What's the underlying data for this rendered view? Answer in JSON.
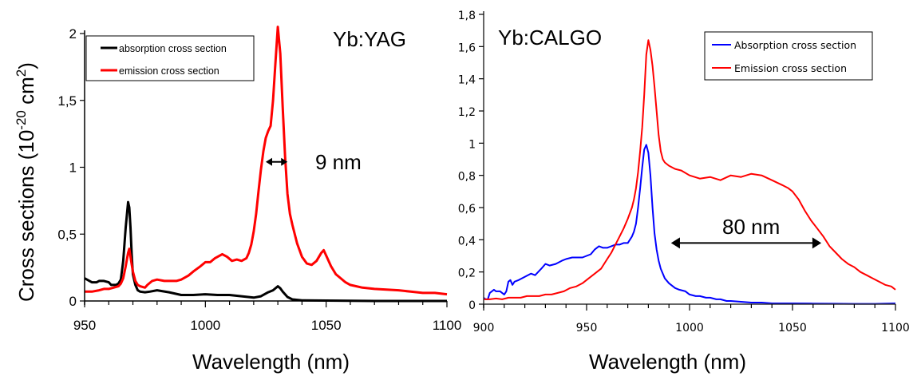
{
  "chart_data": [
    {
      "type": "line",
      "title": "Yb:YAG",
      "xlabel": "Wavelength (nm)",
      "ylabel": "Cross sections (10-20 cm2)",
      "ylabel_parts": {
        "main": "Cross sections (10",
        "sup1": "-20",
        "mid": " cm",
        "sup2": "2",
        "end": ")"
      },
      "xlim": [
        950,
        1100
      ],
      "ylim": [
        0,
        2
      ],
      "x_ticks": [
        950,
        1000,
        1050,
        1100
      ],
      "x_tick_labels": [
        "950",
        "1000",
        "1050",
        "1100"
      ],
      "x_minor_step": 10,
      "y_ticks": [
        0,
        0.5,
        1,
        1.5,
        2
      ],
      "y_tick_labels": [
        "0",
        "0,5",
        "1",
        "1,5",
        "2"
      ],
      "grid": false,
      "legend_position": "top-left",
      "annotation": {
        "text": "9 nm",
        "arrow_from": 1025,
        "arrow_to": 1034,
        "arrow_y": 1.04
      },
      "series": [
        {
          "name": "absorption cross section",
          "color": "#000000",
          "x": [
            950,
            952,
            953,
            955,
            956,
            958,
            960,
            961,
            963,
            964,
            965,
            966,
            967,
            968,
            968.5,
            969,
            969.5,
            970,
            971,
            972,
            973,
            975,
            977,
            980,
            985,
            990,
            995,
            1000,
            1005,
            1010,
            1015,
            1020,
            1023,
            1026,
            1028,
            1030,
            1031,
            1032,
            1034,
            1036,
            1040,
            1050,
            1060,
            1070,
            1080,
            1090,
            1100
          ],
          "y": [
            0.17,
            0.15,
            0.14,
            0.14,
            0.15,
            0.15,
            0.14,
            0.12,
            0.12,
            0.13,
            0.16,
            0.3,
            0.55,
            0.74,
            0.7,
            0.55,
            0.35,
            0.2,
            0.12,
            0.08,
            0.07,
            0.065,
            0.07,
            0.08,
            0.065,
            0.045,
            0.045,
            0.05,
            0.045,
            0.045,
            0.035,
            0.025,
            0.035,
            0.065,
            0.08,
            0.11,
            0.095,
            0.07,
            0.03,
            0.012,
            0.005,
            0.003,
            0.002,
            0.0,
            0.0,
            0.0,
            0.0
          ]
        },
        {
          "name": "emission cross section",
          "color": "#ff0000",
          "x": [
            950,
            953,
            956,
            958,
            960,
            962,
            964,
            965,
            966,
            967,
            968,
            968.5,
            969,
            970,
            971,
            972,
            973,
            975,
            976,
            978,
            980,
            983,
            985,
            988,
            990,
            993,
            995,
            998,
            1000,
            1002,
            1004,
            1007,
            1009,
            1011,
            1013,
            1015,
            1017,
            1018,
            1019,
            1020,
            1021,
            1022,
            1023,
            1024,
            1025,
            1026,
            1027,
            1028,
            1029,
            1030,
            1031,
            1032,
            1033,
            1034,
            1035,
            1036,
            1037,
            1038,
            1040,
            1042,
            1044,
            1046,
            1048,
            1049,
            1050,
            1052,
            1054,
            1056,
            1058,
            1060,
            1065,
            1070,
            1075,
            1080,
            1085,
            1090,
            1095,
            1100
          ],
          "y": [
            0.07,
            0.07,
            0.08,
            0.09,
            0.09,
            0.1,
            0.11,
            0.13,
            0.17,
            0.26,
            0.36,
            0.39,
            0.33,
            0.22,
            0.15,
            0.12,
            0.11,
            0.1,
            0.12,
            0.15,
            0.16,
            0.15,
            0.15,
            0.15,
            0.16,
            0.19,
            0.22,
            0.26,
            0.29,
            0.29,
            0.32,
            0.35,
            0.33,
            0.3,
            0.31,
            0.3,
            0.32,
            0.36,
            0.42,
            0.52,
            0.65,
            0.82,
            0.98,
            1.12,
            1.22,
            1.27,
            1.31,
            1.5,
            1.78,
            2.05,
            1.85,
            1.45,
            1.08,
            0.8,
            0.65,
            0.57,
            0.5,
            0.43,
            0.33,
            0.28,
            0.27,
            0.3,
            0.36,
            0.38,
            0.34,
            0.26,
            0.2,
            0.17,
            0.14,
            0.12,
            0.1,
            0.09,
            0.085,
            0.08,
            0.07,
            0.06,
            0.06,
            0.05
          ]
        }
      ]
    },
    {
      "type": "line",
      "title": "Yb:CALGO",
      "xlabel": "Wavelength (nm)",
      "ylabel": "",
      "xlim": [
        900,
        1100
      ],
      "ylim": [
        0,
        1.8
      ],
      "x_ticks": [
        900,
        950,
        1000,
        1050,
        1100
      ],
      "x_tick_labels": [
        "900",
        "950",
        "1000",
        "1050",
        "1100"
      ],
      "x_minor_step": 10,
      "y_ticks": [
        0,
        0.2,
        0.4,
        0.6,
        0.8,
        1,
        1.2,
        1.4,
        1.6,
        1.8
      ],
      "y_tick_labels": [
        "0",
        "0,2",
        "0,4",
        "0,6",
        "0,8",
        "1",
        "1,2",
        "1,4",
        "1,6",
        "1,8"
      ],
      "grid": false,
      "legend_position": "top-right",
      "annotation": {
        "text": "80 nm",
        "arrow_from": 991,
        "arrow_to": 1064,
        "arrow_y": 0.38
      },
      "series": [
        {
          "name": "Absorption cross section",
          "color": "#0000ff",
          "x": [
            900,
            901,
            902,
            903,
            905,
            906,
            908,
            910,
            911,
            912,
            913,
            914,
            915,
            917,
            920,
            923,
            925,
            928,
            930,
            932,
            935,
            938,
            940,
            943,
            945,
            948,
            950,
            952,
            954,
            956,
            958,
            960,
            962,
            964,
            966,
            968,
            970,
            972,
            973,
            974,
            975,
            976,
            977,
            978,
            979,
            980,
            981,
            982,
            983,
            984,
            985,
            986,
            988,
            990,
            993,
            995,
            998,
            1000,
            1003,
            1005,
            1008,
            1010,
            1013,
            1015,
            1018,
            1020,
            1025,
            1030,
            1035,
            1040,
            1045,
            1050,
            1060,
            1070,
            1080,
            1090,
            1100
          ],
          "y": [
            0.04,
            0.03,
            0.03,
            0.07,
            0.09,
            0.08,
            0.08,
            0.06,
            0.08,
            0.14,
            0.15,
            0.12,
            0.14,
            0.15,
            0.17,
            0.19,
            0.18,
            0.22,
            0.25,
            0.24,
            0.25,
            0.27,
            0.28,
            0.29,
            0.29,
            0.29,
            0.3,
            0.31,
            0.34,
            0.36,
            0.35,
            0.35,
            0.36,
            0.37,
            0.37,
            0.38,
            0.38,
            0.42,
            0.45,
            0.5,
            0.6,
            0.72,
            0.85,
            0.96,
            0.99,
            0.94,
            0.8,
            0.6,
            0.44,
            0.34,
            0.27,
            0.22,
            0.16,
            0.13,
            0.1,
            0.09,
            0.08,
            0.06,
            0.05,
            0.05,
            0.04,
            0.04,
            0.03,
            0.03,
            0.02,
            0.02,
            0.015,
            0.01,
            0.01,
            0.005,
            0.005,
            0.005,
            0.004,
            0.003,
            0.002,
            0.002,
            0.005
          ]
        },
        {
          "name": "Emission cross section",
          "color": "#ff0000",
          "x": [
            900,
            903,
            906,
            909,
            912,
            915,
            918,
            921,
            924,
            927,
            930,
            933,
            936,
            939,
            942,
            945,
            948,
            951,
            954,
            957,
            960,
            962,
            964,
            966,
            968,
            970,
            972,
            973,
            974,
            975,
            976,
            977,
            978,
            979,
            980,
            981,
            982,
            983,
            984,
            985,
            986,
            987,
            988,
            990,
            993,
            996,
            1000,
            1005,
            1010,
            1015,
            1020,
            1025,
            1030,
            1035,
            1040,
            1045,
            1048,
            1050,
            1053,
            1056,
            1059,
            1062,
            1065,
            1068,
            1071,
            1074,
            1077,
            1080,
            1083,
            1086,
            1089,
            1092,
            1095,
            1098,
            1100
          ],
          "y": [
            0.03,
            0.03,
            0.035,
            0.03,
            0.04,
            0.04,
            0.04,
            0.05,
            0.05,
            0.05,
            0.06,
            0.06,
            0.07,
            0.08,
            0.1,
            0.11,
            0.13,
            0.16,
            0.19,
            0.22,
            0.28,
            0.32,
            0.37,
            0.42,
            0.47,
            0.53,
            0.6,
            0.65,
            0.72,
            0.82,
            0.95,
            1.1,
            1.3,
            1.55,
            1.64,
            1.58,
            1.48,
            1.35,
            1.2,
            1.05,
            0.95,
            0.9,
            0.88,
            0.86,
            0.84,
            0.83,
            0.8,
            0.78,
            0.79,
            0.77,
            0.8,
            0.79,
            0.81,
            0.8,
            0.77,
            0.74,
            0.72,
            0.7,
            0.65,
            0.58,
            0.52,
            0.47,
            0.42,
            0.36,
            0.32,
            0.28,
            0.25,
            0.23,
            0.2,
            0.18,
            0.16,
            0.14,
            0.12,
            0.11,
            0.09
          ]
        }
      ]
    }
  ]
}
